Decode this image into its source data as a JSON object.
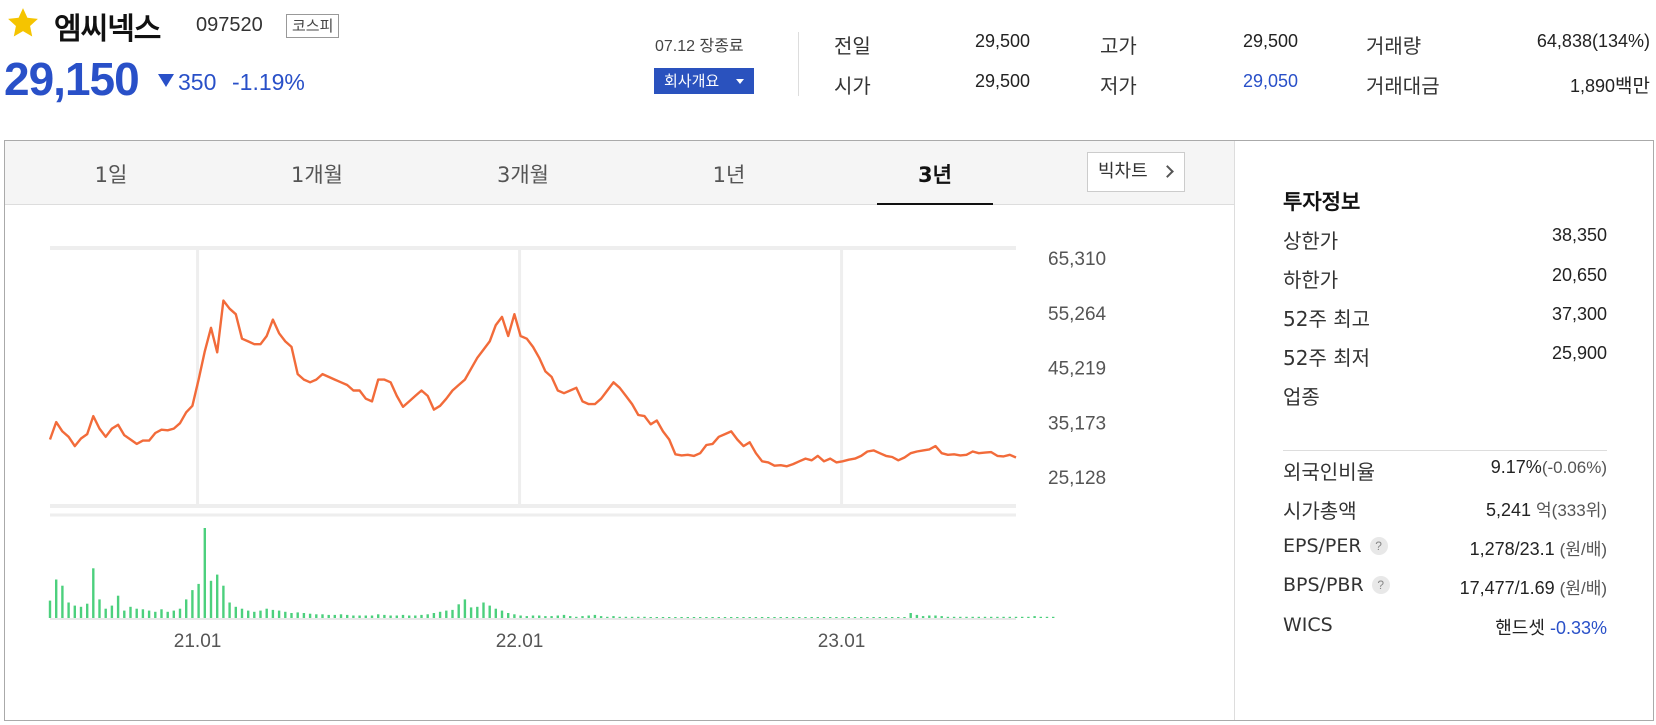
{
  "header": {
    "name": "엠씨넥스",
    "code": "097520",
    "market": "코스피",
    "price": "29,150",
    "change": "350",
    "change_pct": "-1.19%",
    "market_status": "07.12 장종료",
    "company_button": "회사개요",
    "favorite_color": "#f5c400"
  },
  "quote": {
    "prev_label": "전일",
    "prev_value": "29,500",
    "open_label": "시가",
    "open_value": "29,500",
    "high_label": "고가",
    "high_value": "29,500",
    "low_label": "저가",
    "low_value": "29,050",
    "volume_label": "거래량",
    "volume_value": "64,838(134%)",
    "amount_label": "거래대금",
    "amount_value": "1,890",
    "amount_unit": "백만"
  },
  "tabs": [
    {
      "label": "1일"
    },
    {
      "label": "1개월"
    },
    {
      "label": "3개월"
    },
    {
      "label": "1년"
    },
    {
      "label": "3년",
      "active": true
    }
  ],
  "big_chart": "빅차트",
  "chart_data": {
    "type": "line",
    "period": "3년",
    "y_ticks": [
      "65,310",
      "55,264",
      "45,219",
      "35,173",
      "25,128"
    ],
    "y_tick_values": [
      65310,
      55264,
      45219,
      35173,
      25128
    ],
    "ylim": [
      25128,
      65310
    ],
    "x_ticks": [
      "21.01",
      "22.01",
      "23.01"
    ],
    "x_tick_positions": [
      5.5,
      17.5,
      29.5
    ],
    "line_color": "#f26b3a",
    "volume_color": "#4cd07d",
    "series": [
      {
        "values": [
          32000,
          35200,
          33500,
          32500,
          30800,
          32200,
          33000,
          36300,
          34000,
          32500,
          34000,
          34700,
          32800,
          32000,
          31200,
          31800,
          31800,
          33200,
          33800,
          33700,
          34000,
          35000,
          37000,
          38200,
          43000,
          48200,
          52500,
          48000,
          57500,
          56000,
          55000,
          50500,
          50000,
          49500,
          49500,
          51000,
          54000,
          51500,
          50000,
          49000,
          44000,
          43000,
          42500,
          43000,
          44000,
          43500,
          43000,
          42500,
          42000,
          41000,
          41000,
          39500,
          39000,
          43000,
          43000,
          42500,
          40000,
          38000,
          39000,
          40000,
          41000,
          40000,
          37500,
          38200,
          39500,
          41000,
          42000,
          43000,
          45000,
          47000,
          48500,
          50000,
          53000,
          54500,
          51000,
          55000,
          51000,
          50500,
          49000,
          47000,
          44500,
          43500,
          41000,
          40500,
          41000,
          41500,
          39000,
          38500,
          38500,
          39500,
          41000,
          42500,
          41500,
          40000,
          38500,
          36500,
          36300,
          34800,
          35500,
          33500,
          32000,
          29300,
          29100,
          29200,
          29000,
          29500,
          31000,
          31200,
          32500,
          33000,
          33500,
          32000,
          30800,
          31500,
          29500,
          28000,
          27800,
          27200,
          27300,
          27100,
          27500,
          28000,
          28500,
          28200,
          29000,
          28000,
          28500,
          27800,
          28000,
          28300,
          28500,
          29000,
          29800,
          30000,
          29500,
          29000,
          28800,
          28200,
          28700,
          29500,
          29800,
          30000,
          30200,
          30800,
          29500,
          29200,
          29300,
          29100,
          29200,
          29800,
          29500,
          29600,
          29700,
          29000,
          28900,
          29200,
          28700
        ]
      },
      {
        "name": "volume",
        "values": [
          28,
          62,
          52,
          25,
          20,
          18,
          23,
          80,
          30,
          15,
          20,
          36,
          12,
          18,
          15,
          14,
          12,
          10,
          14,
          10,
          12,
          15,
          30,
          45,
          55,
          145,
          60,
          70,
          52,
          25,
          18,
          15,
          12,
          10,
          12,
          15,
          13,
          12,
          10,
          8,
          9,
          8,
          7,
          6,
          6,
          5,
          5,
          6,
          5,
          4,
          4,
          4,
          4,
          6,
          5,
          4,
          4,
          5,
          4,
          4,
          5,
          6,
          8,
          10,
          12,
          13,
          22,
          30,
          17,
          18,
          25,
          20,
          15,
          12,
          8,
          6,
          4,
          3,
          4,
          4,
          3,
          3,
          4,
          5,
          3,
          2,
          3,
          4,
          5,
          3,
          2,
          3,
          2,
          2,
          2,
          2,
          2,
          1,
          1,
          1,
          1,
          1,
          1,
          1,
          1,
          1,
          1,
          1,
          1,
          1,
          1,
          1,
          1,
          1,
          1,
          1,
          1,
          1,
          1,
          1,
          1,
          1,
          1,
          1,
          1,
          1,
          1,
          1,
          1,
          1,
          1,
          1,
          1,
          1,
          1,
          1,
          1,
          1,
          1,
          8,
          5,
          3,
          4,
          4,
          3,
          2,
          2,
          2,
          2,
          2,
          2,
          2,
          2,
          2,
          2,
          2,
          2,
          2,
          2,
          3,
          2,
          2,
          2
        ]
      }
    ]
  },
  "invest": {
    "title": "투자정보",
    "upper_label": "상한가",
    "upper_value": "38,350",
    "lower_label": "하한가",
    "lower_value": "20,650",
    "w52high_label": "52주 최고",
    "w52high_value": "37,300",
    "w52low_label": "52주 최저",
    "w52low_value": "25,900",
    "sector_label": "업종",
    "foreign_label": "외국인비율",
    "foreign_value": "9.17%",
    "foreign_change": "(-0.06%)",
    "mcap_label": "시가총액",
    "mcap_value": "5,241",
    "mcap_unit": "억(333위)",
    "eps_label": "EPS/PER",
    "eps_value": "1,278/23.1",
    "eps_unit": "(원/배)",
    "bps_label": "BPS/PBR",
    "bps_value": "17,477/1.69",
    "bps_unit": "(원/배)",
    "wics_label": "WICS",
    "wics_value": "핸드셋",
    "wics_change": "-0.33%",
    "help_glyph": "?"
  }
}
